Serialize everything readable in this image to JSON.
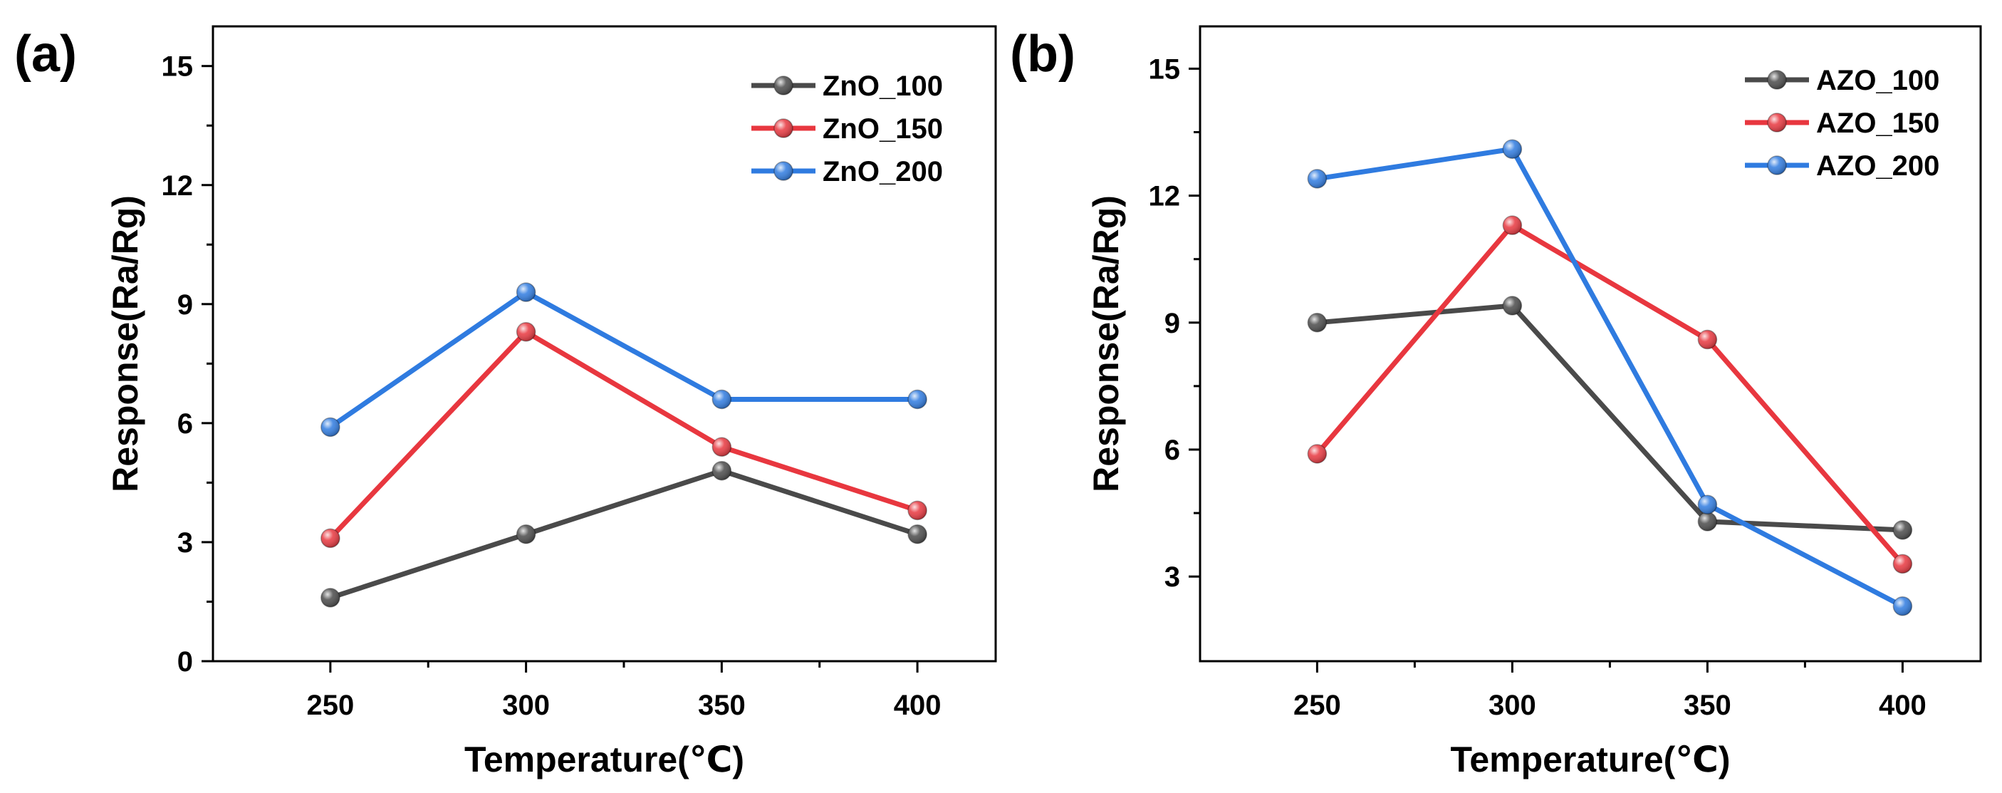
{
  "chart_data": [
    {
      "panel_label": "(a)",
      "type": "line",
      "xlabel": "Temperature(℃)",
      "ylabel": "Response(Ra/Rg)",
      "x": [
        250,
        300,
        350,
        400
      ],
      "x_ticks": [
        "250",
        "300",
        "350",
        "400"
      ],
      "xlim": [
        220,
        420
      ],
      "ylim": [
        0,
        16
      ],
      "y_ticks": [
        0,
        3,
        6,
        9,
        12,
        15
      ],
      "legend": "top-right",
      "series": [
        {
          "name": "ZnO_100",
          "color": "#4a4a4a",
          "values": [
            1.6,
            3.2,
            4.8,
            3.2
          ]
        },
        {
          "name": "ZnO_150",
          "color": "#e8373f",
          "values": [
            3.1,
            8.3,
            5.4,
            3.8
          ]
        },
        {
          "name": "ZnO_200",
          "color": "#2f7be0",
          "values": [
            5.9,
            9.3,
            6.6,
            6.6
          ]
        }
      ]
    },
    {
      "panel_label": "(b)",
      "type": "line",
      "xlabel": "Temperature(℃)",
      "ylabel": "Response(Ra/Rg)",
      "x": [
        250,
        300,
        350,
        400
      ],
      "x_ticks": [
        "250",
        "300",
        "350",
        "400"
      ],
      "xlim": [
        220,
        420
      ],
      "ylim": [
        1,
        16
      ],
      "y_ticks": [
        3,
        6,
        9,
        12,
        15
      ],
      "legend": "top-right",
      "series": [
        {
          "name": "AZO_100",
          "color": "#4a4a4a",
          "values": [
            9.0,
            9.4,
            4.3,
            4.1
          ]
        },
        {
          "name": "AZO_150",
          "color": "#e8373f",
          "values": [
            5.9,
            11.3,
            8.6,
            3.3
          ]
        },
        {
          "name": "AZO_200",
          "color": "#2f7be0",
          "values": [
            12.4,
            13.1,
            4.7,
            2.3
          ]
        }
      ]
    }
  ]
}
